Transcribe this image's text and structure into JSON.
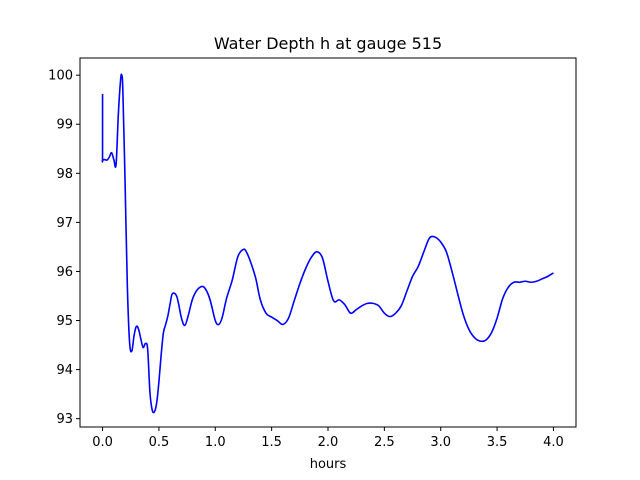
{
  "chart_data": {
    "type": "line",
    "title": "Water Depth h at gauge 515",
    "xlabel": "hours",
    "ylabel": "",
    "xlim": [
      -0.2,
      4.2
    ],
    "ylim": [
      92.83,
      100.35
    ],
    "xticks": [
      0.0,
      0.5,
      1.0,
      1.5,
      2.0,
      2.5,
      3.0,
      3.5,
      4.0
    ],
    "xtick_labels": [
      "0.0",
      "0.5",
      "1.0",
      "1.5",
      "2.0",
      "2.5",
      "3.0",
      "3.5",
      "4.0"
    ],
    "yticks": [
      93,
      94,
      95,
      96,
      97,
      98,
      99,
      100
    ],
    "ytick_labels": [
      "93",
      "94",
      "95",
      "96",
      "97",
      "98",
      "99",
      "100"
    ],
    "grid": false,
    "series": [
      {
        "color": "#0000ff",
        "x": [
          0.0,
          0.0,
          0.0,
          0.02,
          0.04,
          0.06,
          0.08,
          0.1,
          0.12,
          0.14,
          0.16,
          0.17,
          0.18,
          0.2,
          0.22,
          0.24,
          0.26,
          0.28,
          0.3,
          0.32,
          0.34,
          0.36,
          0.38,
          0.4,
          0.42,
          0.44,
          0.46,
          0.48,
          0.5,
          0.52,
          0.54,
          0.56,
          0.58,
          0.6,
          0.62,
          0.66,
          0.7,
          0.73,
          0.76,
          0.8,
          0.85,
          0.9,
          0.95,
          1.0,
          1.03,
          1.06,
          1.1,
          1.15,
          1.2,
          1.25,
          1.28,
          1.32,
          1.36,
          1.4,
          1.45,
          1.5,
          1.55,
          1.6,
          1.65,
          1.7,
          1.75,
          1.8,
          1.85,
          1.9,
          1.95,
          2.0,
          2.05,
          2.1,
          2.15,
          2.2,
          2.25,
          2.3,
          2.35,
          2.4,
          2.45,
          2.5,
          2.55,
          2.6,
          2.65,
          2.7,
          2.75,
          2.8,
          2.85,
          2.9,
          2.95,
          3.0,
          3.05,
          3.1,
          3.15,
          3.2,
          3.25,
          3.3,
          3.35,
          3.4,
          3.45,
          3.5,
          3.55,
          3.6,
          3.65,
          3.7,
          3.75,
          3.8,
          3.85,
          3.9,
          3.95,
          4.0
        ],
        "y": [
          99.62,
          98.35,
          98.28,
          98.28,
          98.27,
          98.33,
          98.42,
          98.28,
          98.18,
          99.2,
          99.9,
          100.0,
          99.7,
          97.8,
          95.7,
          94.55,
          94.38,
          94.7,
          94.88,
          94.82,
          94.62,
          94.45,
          94.53,
          94.42,
          93.55,
          93.18,
          93.14,
          93.32,
          93.75,
          94.3,
          94.75,
          94.92,
          95.1,
          95.35,
          95.55,
          95.48,
          95.05,
          94.9,
          95.1,
          95.45,
          95.65,
          95.68,
          95.45,
          95.0,
          94.92,
          95.05,
          95.45,
          95.82,
          96.3,
          96.45,
          96.38,
          96.15,
          95.85,
          95.42,
          95.15,
          95.07,
          95.0,
          94.92,
          95.05,
          95.4,
          95.75,
          96.05,
          96.28,
          96.4,
          96.28,
          95.8,
          95.4,
          95.42,
          95.32,
          95.15,
          95.22,
          95.3,
          95.35,
          95.35,
          95.3,
          95.15,
          95.08,
          95.15,
          95.3,
          95.6,
          95.9,
          96.1,
          96.4,
          96.68,
          96.7,
          96.6,
          96.4,
          96.0,
          95.55,
          95.12,
          94.82,
          94.65,
          94.58,
          94.6,
          94.75,
          95.05,
          95.45,
          95.68,
          95.78,
          95.78,
          95.8,
          95.78,
          95.8,
          95.85,
          95.9,
          95.97
        ]
      }
    ]
  }
}
